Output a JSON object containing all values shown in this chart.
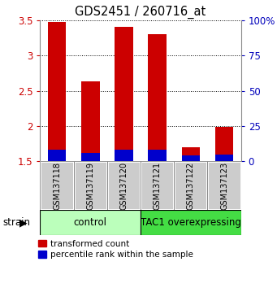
{
  "title": "GDS2451 / 260716_at",
  "samples": [
    "GSM137118",
    "GSM137119",
    "GSM137120",
    "GSM137121",
    "GSM137122",
    "GSM137123"
  ],
  "red_values": [
    3.47,
    2.63,
    3.4,
    3.3,
    1.7,
    1.99
  ],
  "blue_percentiles": [
    8,
    6,
    8,
    8,
    4,
    5
  ],
  "bar_bottom": 1.5,
  "ylim_left": [
    1.5,
    3.5
  ],
  "ylim_right": [
    0,
    100
  ],
  "yticks_left": [
    1.5,
    2.0,
    2.5,
    3.0,
    3.5
  ],
  "ytick_labels_left": [
    "1.5",
    "2",
    "2.5",
    "3",
    "3.5"
  ],
  "yticks_right": [
    0,
    25,
    50,
    75,
    100
  ],
  "ytick_labels_right": [
    "0",
    "25",
    "50",
    "75",
    "100%"
  ],
  "groups": [
    {
      "label": "control",
      "indices": [
        0,
        1,
        2
      ],
      "color": "#bbffbb"
    },
    {
      "label": "TAC1 overexpressing",
      "indices": [
        3,
        4,
        5
      ],
      "color": "#44dd44"
    }
  ],
  "strain_label": "strain",
  "red_color": "#cc0000",
  "blue_color": "#0000cc",
  "legend_red": "transformed count",
  "legend_blue": "percentile rank within the sample",
  "bar_width": 0.55,
  "left_tick_color": "#cc0000",
  "right_tick_color": "#0000bb",
  "sample_box_color": "#cccccc",
  "sample_box_edge": "#888888"
}
